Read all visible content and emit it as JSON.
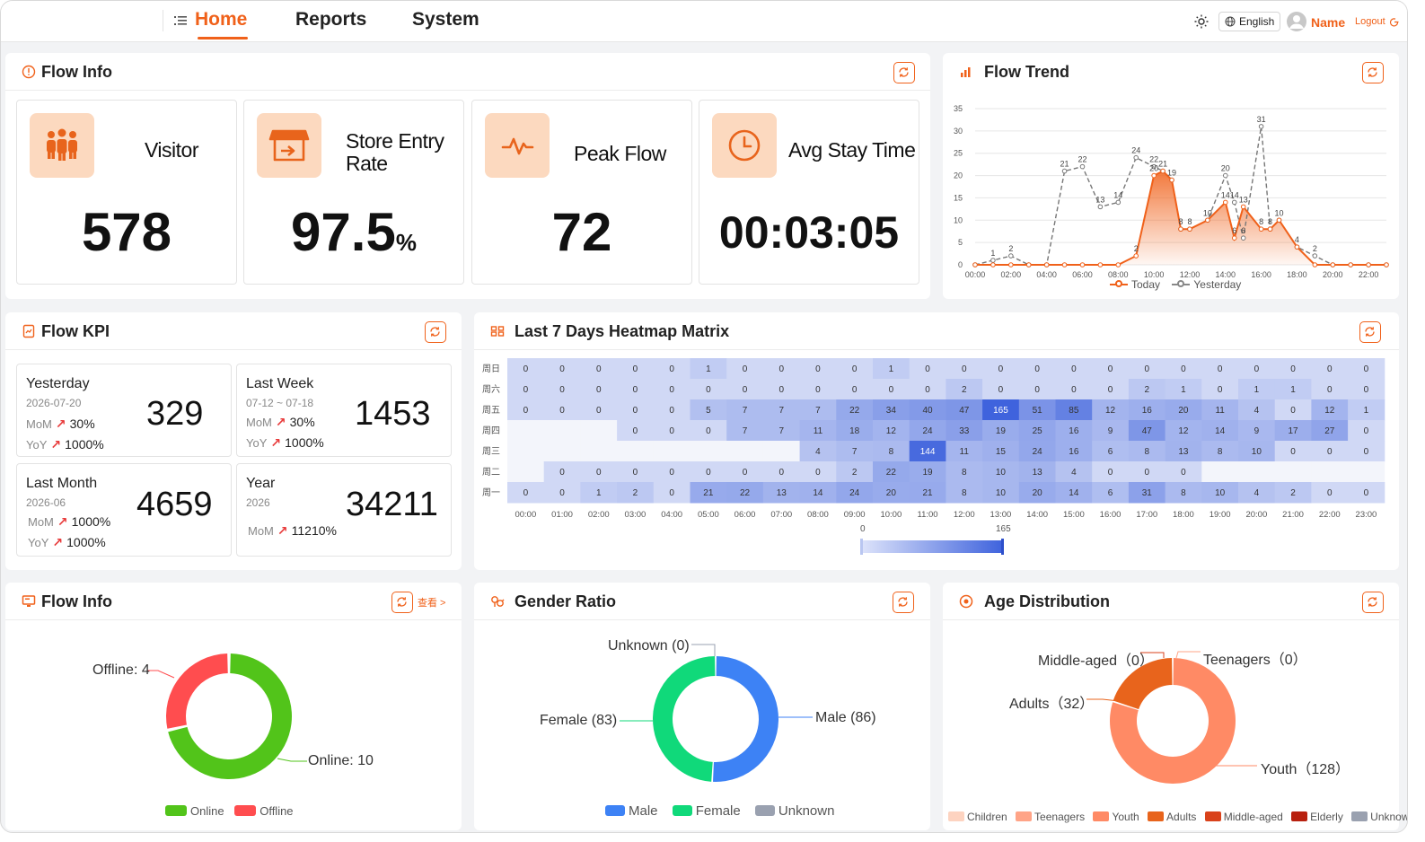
{
  "nav": {
    "items": [
      {
        "label": "Home"
      },
      {
        "label": "Reports"
      },
      {
        "label": "System"
      }
    ]
  },
  "topbar": {
    "language": "English",
    "user": "Name",
    "logout": "Logout"
  },
  "colors": {
    "accent": "#f0611a",
    "icon_bg": "#fcd9bf"
  },
  "flow_info": {
    "title": "Flow Info",
    "stats": [
      {
        "label": "Visitor",
        "value": "578",
        "unit": "",
        "icon": "people-icon"
      },
      {
        "label": "Store Entry Rate",
        "value": "97.5",
        "unit": "%",
        "icon": "store-icon"
      },
      {
        "label": "Peak Flow",
        "value": "72",
        "unit": "",
        "icon": "pulse-icon"
      },
      {
        "label": "Avg Stay Time",
        "value": "00:03:05",
        "unit": "",
        "icon": "clock-icon"
      }
    ]
  },
  "flow_trend": {
    "title": "Flow Trend",
    "legend": [
      "Today",
      "Yesterday"
    ]
  },
  "flow_kpi": {
    "title": "Flow KPI",
    "cards": [
      {
        "title": "Yesterday",
        "date": "2026-07-20",
        "value": "329",
        "metrics": [
          {
            "k": "MoM",
            "v": "30%"
          },
          {
            "k": "YoY",
            "v": "1000%"
          }
        ]
      },
      {
        "title": "Last Week",
        "date": "07-12 ~ 07-18",
        "value": "1453",
        "metrics": [
          {
            "k": "MoM",
            "v": "30%"
          },
          {
            "k": "YoY",
            "v": "1000%"
          }
        ]
      },
      {
        "title": "Last Month",
        "date": "2026-06",
        "value": "4659",
        "metrics": [
          {
            "k": "MoM",
            "v": "1000%"
          },
          {
            "k": "YoY",
            "v": "1000%"
          }
        ]
      },
      {
        "title": "Year",
        "date": "2026",
        "value": "34211",
        "metrics": [
          {
            "k": "MoM",
            "v": "11210%"
          }
        ]
      }
    ]
  },
  "heatmap": {
    "title": "Last 7 Days Heatmap Matrix",
    "scale_min": "0",
    "scale_max": "165"
  },
  "device_info": {
    "title": "Flow Info",
    "view_more": "查看 >",
    "online_label": "Online: 10",
    "offline_label": "Offline: 4",
    "legend": [
      "Online",
      "Offline"
    ]
  },
  "gender": {
    "title": "Gender Ratio",
    "male_label": "Male (86)",
    "female_label": "Female (83)",
    "unknown_label": "Unknown (0)",
    "legend": [
      "Male",
      "Female",
      "Unknown"
    ]
  },
  "age": {
    "title": "Age Distribution",
    "youth_label": "Youth（128）",
    "adults_label": "Adults（32）",
    "middle_label": "Middle-aged（0）",
    "teen_label": "Teenagers（0）",
    "legend": [
      "Children",
      "Teenagers",
      "Youth",
      "Adults",
      "Middle-aged",
      "Elderly",
      "Unknown"
    ]
  },
  "chart_data": [
    {
      "type": "line",
      "title": "Flow Trend",
      "x": [
        "00:00",
        "01:00",
        "02:00",
        "03:00",
        "04:00",
        "05:00",
        "06:00",
        "07:00",
        "08:00",
        "09:00",
        "10:00",
        "10:30",
        "11:00",
        "11:30",
        "12:00",
        "13:00",
        "14:00",
        "14:30",
        "15:00",
        "16:00",
        "16:30",
        "17:00",
        "18:00",
        "19:00",
        "20:00",
        "21:00",
        "22:00",
        "23:00"
      ],
      "ylim": [
        0,
        35
      ],
      "yticks": [
        0,
        5,
        10,
        15,
        20,
        25,
        30,
        35
      ],
      "xticks": [
        "00:00",
        "02:00",
        "04:00",
        "06:00",
        "08:00",
        "10:00",
        "12:00",
        "14:00",
        "16:00",
        "18:00",
        "20:00",
        "22:00"
      ],
      "series": [
        {
          "name": "Today",
          "values": [
            0,
            0,
            0,
            0,
            0,
            0,
            0,
            0,
            0,
            2,
            20,
            21,
            19,
            8,
            8,
            10,
            14,
            6,
            13,
            8,
            8,
            10,
            4,
            0,
            0,
            0,
            0,
            0
          ]
        },
        {
          "name": "Yesterday",
          "values": [
            0,
            1,
            2,
            0,
            0,
            21,
            22,
            13,
            14,
            24,
            22,
            21,
            19,
            8,
            8,
            10,
            20,
            14,
            6,
            31,
            8,
            10,
            4,
            2,
            0,
            0,
            0,
            0
          ]
        }
      ]
    },
    {
      "type": "heatmap",
      "title": "Last 7 Days Heatmap Matrix",
      "rows": [
        "周日",
        "周六",
        "周五",
        "周四",
        "周三",
        "周二",
        "周一"
      ],
      "cols": [
        "00:00",
        "01:00",
        "02:00",
        "03:00",
        "04:00",
        "05:00",
        "06:00",
        "07:00",
        "08:00",
        "09:00",
        "10:00",
        "11:00",
        "12:00",
        "13:00",
        "14:00",
        "15:00",
        "16:00",
        "17:00",
        "18:00",
        "19:00",
        "20:00",
        "21:00",
        "22:00",
        "23:00"
      ],
      "values": [
        [
          0,
          0,
          0,
          0,
          0,
          1,
          0,
          0,
          0,
          0,
          1,
          0,
          0,
          0,
          0,
          0,
          0,
          0,
          0,
          0,
          0,
          0,
          0,
          0
        ],
        [
          0,
          0,
          0,
          0,
          0,
          0,
          0,
          0,
          0,
          0,
          0,
          0,
          2,
          0,
          0,
          0,
          0,
          2,
          1,
          0,
          1,
          1,
          0,
          0
        ],
        [
          0,
          0,
          0,
          0,
          0,
          5,
          7,
          7,
          7,
          22,
          34,
          40,
          47,
          165,
          51,
          85,
          12,
          16,
          20,
          11,
          4,
          0,
          12,
          1
        ],
        [
          null,
          null,
          null,
          0,
          0,
          0,
          7,
          7,
          11,
          18,
          12,
          24,
          33,
          19,
          25,
          16,
          9,
          47,
          12,
          14,
          9,
          17,
          27,
          0
        ],
        [
          null,
          null,
          null,
          null,
          null,
          null,
          null,
          null,
          4,
          7,
          8,
          144,
          11,
          15,
          24,
          16,
          6,
          8,
          13,
          8,
          10,
          0,
          0,
          0
        ],
        [
          null,
          0,
          0,
          0,
          0,
          0,
          0,
          0,
          0,
          2,
          22,
          19,
          8,
          10,
          13,
          4,
          0,
          0,
          0,
          null,
          null,
          null,
          null,
          null
        ],
        [
          0,
          0,
          1,
          2,
          0,
          21,
          22,
          13,
          14,
          24,
          20,
          21,
          8,
          10,
          20,
          14,
          6,
          31,
          8,
          10,
          4,
          2,
          0,
          0
        ]
      ],
      "range": [
        0,
        165
      ]
    },
    {
      "type": "pie",
      "title": "Flow Info",
      "categories": [
        "Online",
        "Offline"
      ],
      "values": [
        10,
        4
      ]
    },
    {
      "type": "pie",
      "title": "Gender Ratio",
      "categories": [
        "Male",
        "Female",
        "Unknown"
      ],
      "values": [
        86,
        83,
        0
      ]
    },
    {
      "type": "pie",
      "title": "Age Distribution",
      "categories": [
        "Children",
        "Teenagers",
        "Youth",
        "Adults",
        "Middle-aged",
        "Elderly",
        "Unknown"
      ],
      "values": [
        0,
        0,
        128,
        32,
        0,
        0,
        0
      ]
    }
  ]
}
